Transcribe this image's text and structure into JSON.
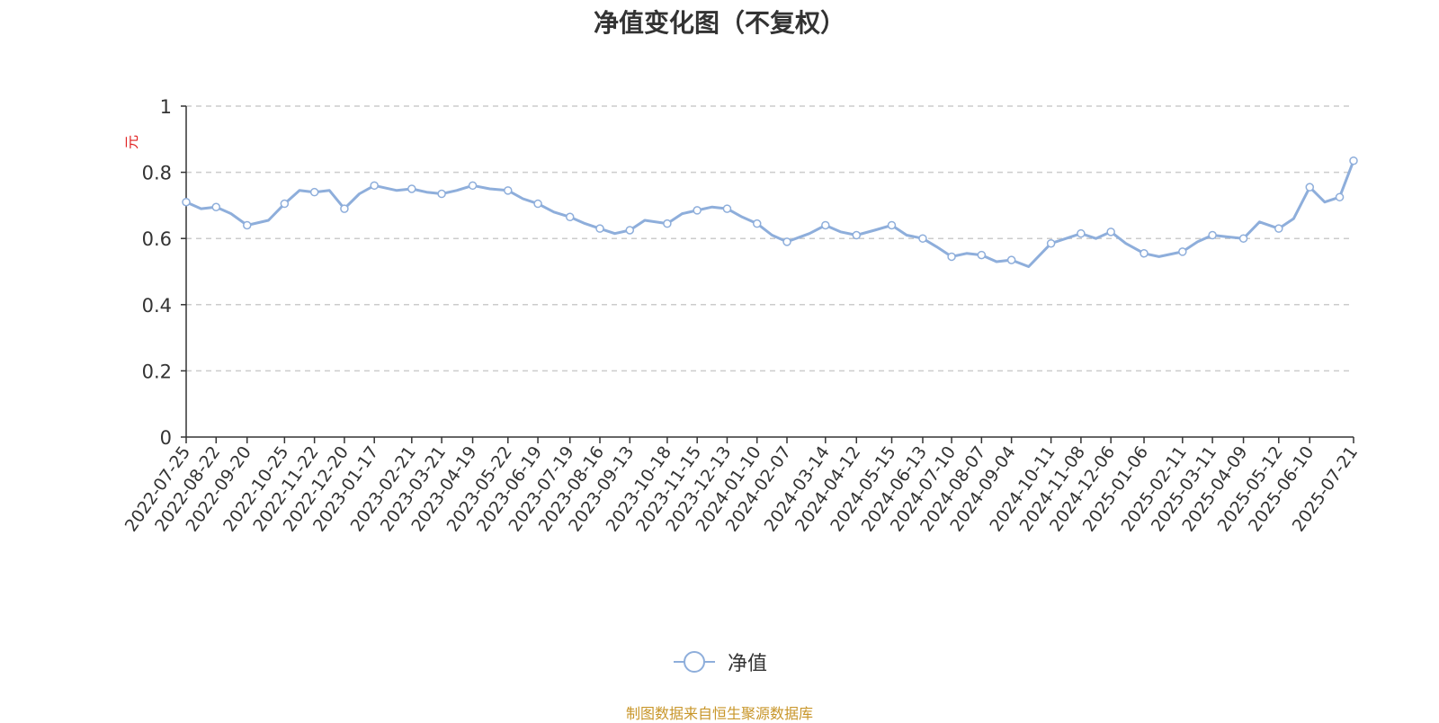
{
  "chart_data": {
    "type": "line",
    "title": "净值变化图（不复权）",
    "ylabel": "元",
    "ylim": [
      0,
      1
    ],
    "yticks": [
      "0",
      "0.2",
      "0.4",
      "0.6",
      "0.8",
      "1"
    ],
    "grid": true,
    "legend_position": "bottom-center",
    "x_tick_labels": [
      "2022-07-25",
      "2022-08-22",
      "2022-09-20",
      "2022-10-25",
      "2022-11-22",
      "2022-12-20",
      "2023-01-17",
      "2023-02-21",
      "2023-03-21",
      "2023-04-19",
      "2023-05-22",
      "2023-06-19",
      "2023-07-19",
      "2023-08-16",
      "2023-09-13",
      "2023-10-18",
      "2023-11-15",
      "2023-12-13",
      "2024-01-10",
      "2024-02-07",
      "2024-03-14",
      "2024-04-12",
      "2024-05-15",
      "2024-06-13",
      "2024-07-10",
      "2024-08-07",
      "2024-09-04",
      "2024-10-11",
      "2024-11-08",
      "2024-12-06",
      "2025-01-06",
      "2025-02-11",
      "2025-03-11",
      "2025-04-09",
      "2025-05-12",
      "2025-06-10",
      "2025-07-21"
    ],
    "series": [
      {
        "name": "净值",
        "color": "#8eaedb",
        "x": [
          "2022-07-25",
          "2022-08-08",
          "2022-08-22",
          "2022-09-05",
          "2022-09-20",
          "2022-10-10",
          "2022-10-25",
          "2022-11-08",
          "2022-11-22",
          "2022-12-06",
          "2022-12-20",
          "2023-01-03",
          "2023-01-17",
          "2023-02-07",
          "2023-02-21",
          "2023-03-07",
          "2023-03-21",
          "2023-04-04",
          "2023-04-19",
          "2023-05-05",
          "2023-05-22",
          "2023-06-05",
          "2023-06-19",
          "2023-07-04",
          "2023-07-19",
          "2023-08-02",
          "2023-08-16",
          "2023-08-30",
          "2023-09-13",
          "2023-09-27",
          "2023-10-18",
          "2023-11-01",
          "2023-11-15",
          "2023-11-29",
          "2023-12-13",
          "2023-12-27",
          "2024-01-10",
          "2024-01-24",
          "2024-02-07",
          "2024-02-28",
          "2024-03-14",
          "2024-03-28",
          "2024-04-12",
          "2024-04-29",
          "2024-05-15",
          "2024-05-29",
          "2024-06-13",
          "2024-06-26",
          "2024-07-10",
          "2024-07-24",
          "2024-08-07",
          "2024-08-21",
          "2024-09-04",
          "2024-09-20",
          "2024-10-11",
          "2024-10-25",
          "2024-11-08",
          "2024-11-22",
          "2024-12-06",
          "2024-12-20",
          "2025-01-06",
          "2025-01-20",
          "2025-02-11",
          "2025-02-25",
          "2025-03-11",
          "2025-03-25",
          "2025-04-09",
          "2025-04-24",
          "2025-05-12",
          "2025-05-26",
          "2025-06-10",
          "2025-06-24",
          "2025-07-08",
          "2025-07-21"
        ],
        "values": [
          0.71,
          0.69,
          0.695,
          0.675,
          0.64,
          0.655,
          0.705,
          0.745,
          0.74,
          0.745,
          0.69,
          0.735,
          0.76,
          0.745,
          0.75,
          0.74,
          0.735,
          0.745,
          0.76,
          0.75,
          0.745,
          0.72,
          0.705,
          0.68,
          0.665,
          0.645,
          0.63,
          0.615,
          0.625,
          0.655,
          0.645,
          0.675,
          0.685,
          0.695,
          0.69,
          0.665,
          0.645,
          0.61,
          0.59,
          0.615,
          0.64,
          0.62,
          0.61,
          0.625,
          0.64,
          0.61,
          0.6,
          0.575,
          0.545,
          0.555,
          0.55,
          0.53,
          0.535,
          0.515,
          0.585,
          0.6,
          0.615,
          0.6,
          0.62,
          0.585,
          0.555,
          0.545,
          0.56,
          0.59,
          0.61,
          0.605,
          0.6,
          0.65,
          0.63,
          0.66,
          0.755,
          0.71,
          0.725,
          0.835
        ]
      }
    ]
  },
  "legend": {
    "label": "净值"
  },
  "footer": {
    "source": "制图数据来自恒生聚源数据库"
  }
}
